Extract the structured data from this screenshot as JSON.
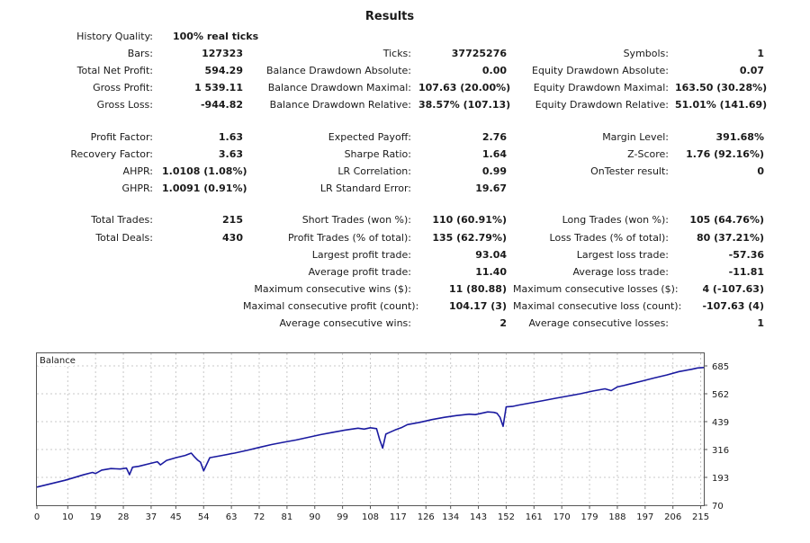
{
  "report": {
    "title": "Results",
    "history_quality": {
      "label": "History Quality:",
      "value": "100% real ticks"
    },
    "rows": [
      {
        "top": 52,
        "cells": [
          [
            "Bars:",
            "127323"
          ],
          [
            "Ticks:",
            "37725276"
          ],
          [
            "Symbols:",
            "1"
          ]
        ]
      },
      {
        "top": 71,
        "cells": [
          [
            "Total Net Profit:",
            "594.29"
          ],
          [
            "Balance Drawdown Absolute:",
            "0.00"
          ],
          [
            "Equity Drawdown Absolute:",
            "0.07"
          ]
        ]
      },
      {
        "top": 90,
        "cells": [
          [
            "Gross Profit:",
            "1 539.11"
          ],
          [
            "Balance Drawdown Maximal:",
            "107.63 (20.00%)"
          ],
          [
            "Equity Drawdown Maximal:",
            "163.50 (30.28%)"
          ]
        ]
      },
      {
        "top": 109,
        "cells": [
          [
            "Gross Loss:",
            "-944.82"
          ],
          [
            "Balance Drawdown Relative:",
            "38.57% (107.13)"
          ],
          [
            "Equity Drawdown Relative:",
            "51.01% (141.69)"
          ]
        ]
      },
      {
        "top": 145,
        "cells": [
          [
            "Profit Factor:",
            "1.63"
          ],
          [
            "Expected Payoff:",
            "2.76"
          ],
          [
            "Margin Level:",
            "391.68%"
          ]
        ]
      },
      {
        "top": 164,
        "cells": [
          [
            "Recovery Factor:",
            "3.63"
          ],
          [
            "Sharpe Ratio:",
            "1.64"
          ],
          [
            "Z-Score:",
            "1.76 (92.16%)"
          ]
        ]
      },
      {
        "top": 183,
        "cells": [
          [
            "AHPR:",
            "1.0108 (1.08%)"
          ],
          [
            "LR Correlation:",
            "0.99"
          ],
          [
            "OnTester result:",
            "0"
          ]
        ]
      },
      {
        "top": 202,
        "cells": [
          [
            "GHPR:",
            "1.0091 (0.91%)"
          ],
          [
            "LR Standard Error:",
            "19.67"
          ],
          null
        ]
      },
      {
        "top": 237,
        "cells": [
          [
            "Total Trades:",
            "215"
          ],
          [
            "Short Trades (won %):",
            "110 (60.91%)"
          ],
          [
            "Long Trades (won %):",
            "105 (64.76%)"
          ]
        ]
      },
      {
        "top": 257,
        "cells": [
          [
            "Total Deals:",
            "430"
          ],
          [
            "Profit Trades (% of total):",
            "135 (62.79%)"
          ],
          [
            "Loss Trades (% of total):",
            "80 (37.21%)"
          ]
        ]
      },
      {
        "top": 276,
        "cells": [
          null,
          [
            "Largest profit trade:",
            "93.04"
          ],
          [
            "Largest loss trade:",
            "-57.36"
          ]
        ]
      },
      {
        "top": 295,
        "cells": [
          null,
          [
            "Average profit trade:",
            "11.40"
          ],
          [
            "Average loss trade:",
            "-11.81"
          ]
        ]
      },
      {
        "top": 314,
        "cells": [
          null,
          [
            "Maximum consecutive wins ($):",
            "11 (80.88)"
          ],
          [
            "Maximum consecutive losses ($):",
            "4 (-107.63)"
          ]
        ]
      },
      {
        "top": 333,
        "cells": [
          null,
          [
            "Maximal consecutive profit (count):",
            "104.17 (3)"
          ],
          [
            "Maximal consecutive loss (count):",
            "-107.63 (4)"
          ]
        ]
      },
      {
        "top": 352,
        "cells": [
          null,
          [
            "Average consecutive wins:",
            "2"
          ],
          [
            "Average consecutive losses:",
            "1"
          ]
        ]
      }
    ]
  },
  "chart_data": {
    "type": "line",
    "title": "Balance",
    "xlabel": "",
    "ylabel": "",
    "x_ticks": [
      0,
      10,
      19,
      28,
      37,
      45,
      54,
      63,
      72,
      81,
      90,
      99,
      108,
      117,
      126,
      134,
      143,
      152,
      161,
      170,
      179,
      188,
      197,
      206,
      215
    ],
    "y_ticks": [
      70,
      193,
      316,
      439,
      562,
      685
    ],
    "xlim": [
      0,
      216
    ],
    "ylim": [
      70,
      685
    ],
    "grid": true,
    "line_color": "#1a1aa0",
    "series": [
      {
        "x": [
          0,
          3,
          6,
          9,
          12,
          15,
          18,
          19,
          21,
          24,
          27,
          29,
          30,
          31,
          33,
          36,
          39,
          40,
          42,
          45,
          48,
          50,
          51,
          52,
          53,
          54,
          56,
          60,
          64,
          68,
          72,
          76,
          80,
          84,
          88,
          92,
          96,
          100,
          104,
          106,
          108,
          110,
          111,
          112,
          113,
          114,
          116,
          118,
          120,
          124,
          128,
          132,
          136,
          140,
          142,
          144,
          146,
          148,
          149,
          150,
          151,
          152,
          154,
          156,
          160,
          164,
          168,
          172,
          176,
          180,
          184,
          186,
          188,
          190,
          192,
          196,
          200,
          204,
          208,
          212,
          214,
          216
        ],
        "y": [
          150,
          160,
          170,
          180,
          192,
          204,
          215,
          210,
          225,
          232,
          230,
          234,
          205,
          238,
          242,
          252,
          262,
          248,
          268,
          280,
          290,
          300,
          284,
          270,
          260,
          222,
          280,
          290,
          300,
          312,
          325,
          338,
          348,
          358,
          370,
          382,
          392,
          402,
          410,
          406,
          412,
          408,
          360,
          322,
          384,
          390,
          402,
          412,
          426,
          436,
          448,
          458,
          466,
          472,
          470,
          476,
          482,
          480,
          476,
          458,
          418,
          504,
          506,
          512,
          522,
          532,
          542,
          552,
          562,
          574,
          584,
          576,
          592,
          598,
          605,
          618,
          632,
          645,
          660,
          670,
          676,
          678
        ]
      }
    ]
  }
}
